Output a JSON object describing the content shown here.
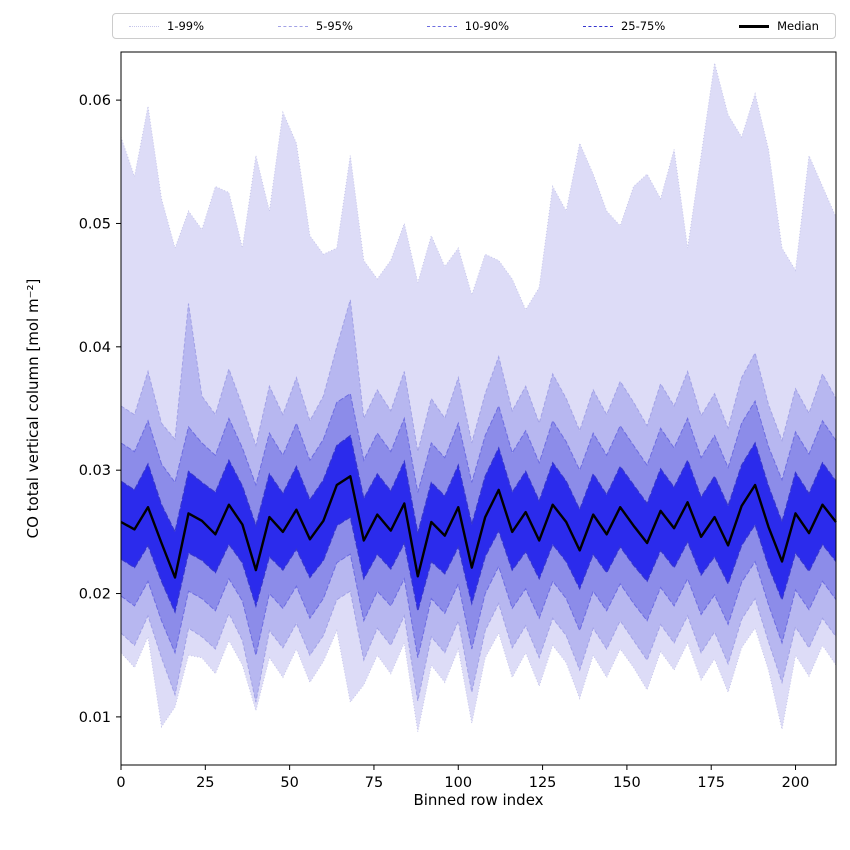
{
  "figure": {
    "xlabel": "Binned row index",
    "ylabel": "CO total vertical column [mol m⁻²]"
  },
  "legend": {
    "position": "top",
    "items": [
      {
        "label": "1-99%",
        "style": "dotted",
        "color": "#c6c6ea",
        "weight": 1
      },
      {
        "label": "5-95%",
        "style": "dashed",
        "color": "#a2a2e6",
        "weight": 1
      },
      {
        "label": "10-90%",
        "style": "dashed",
        "color": "#6d6de0",
        "weight": 1
      },
      {
        "label": "25-75%",
        "style": "dashed",
        "color": "#3535cf",
        "weight": 1
      },
      {
        "label": "Median",
        "style": "solid",
        "color": "#000000",
        "weight": 3
      }
    ]
  },
  "chart_data": {
    "type": "area",
    "subtype": "quantile-fan",
    "title": "",
    "xlabel": "Binned row index",
    "ylabel": "CO total vertical column [mol m⁻²]",
    "xlim": [
      0,
      212
    ],
    "ylim": [
      0.0061,
      0.0639
    ],
    "x_ticks": [
      0,
      25,
      50,
      75,
      100,
      125,
      150,
      175,
      200
    ],
    "y_ticks": [
      0.01,
      0.02,
      0.03,
      0.04,
      0.05,
      0.06
    ],
    "grid": false,
    "legend_position": "top",
    "x": [
      0,
      4,
      8,
      12,
      16,
      20,
      24,
      28,
      32,
      36,
      40,
      44,
      48,
      52,
      56,
      60,
      64,
      68,
      72,
      76,
      80,
      84,
      88,
      92,
      96,
      100,
      104,
      108,
      112,
      116,
      120,
      124,
      128,
      132,
      136,
      140,
      144,
      148,
      152,
      156,
      160,
      164,
      168,
      172,
      176,
      180,
      184,
      188,
      192,
      196,
      200,
      204,
      208,
      212
    ],
    "series": [
      {
        "name": "p1",
        "values": [
          0.0152,
          0.014,
          0.0165,
          0.0092,
          0.0108,
          0.015,
          0.0148,
          0.0135,
          0.0162,
          0.0142,
          0.0105,
          0.0148,
          0.0132,
          0.0155,
          0.0128,
          0.0145,
          0.017,
          0.0112,
          0.0126,
          0.015,
          0.0135,
          0.016,
          0.0088,
          0.0142,
          0.0128,
          0.0155,
          0.0095,
          0.0148,
          0.0168,
          0.0132,
          0.0152,
          0.0125,
          0.0158,
          0.0144,
          0.0115,
          0.015,
          0.0132,
          0.0155,
          0.014,
          0.0122,
          0.0153,
          0.0138,
          0.016,
          0.013,
          0.0147,
          0.012,
          0.0156,
          0.0172,
          0.0138,
          0.009,
          0.015,
          0.0133,
          0.0158,
          0.0142
        ]
      },
      {
        "name": "p5",
        "values": [
          0.0168,
          0.0158,
          0.0182,
          0.0148,
          0.0118,
          0.0172,
          0.0165,
          0.0155,
          0.0184,
          0.0162,
          0.0112,
          0.017,
          0.0156,
          0.0176,
          0.015,
          0.0166,
          0.0195,
          0.0202,
          0.0146,
          0.0172,
          0.0158,
          0.0182,
          0.0113,
          0.0165,
          0.0152,
          0.0178,
          0.012,
          0.017,
          0.0192,
          0.0156,
          0.0174,
          0.0148,
          0.018,
          0.0166,
          0.0138,
          0.0172,
          0.0155,
          0.0178,
          0.0162,
          0.0146,
          0.0175,
          0.016,
          0.0182,
          0.0152,
          0.0169,
          0.0143,
          0.0179,
          0.0196,
          0.0161,
          0.0128,
          0.0173,
          0.0156,
          0.018,
          0.0165
        ]
      },
      {
        "name": "p10",
        "values": [
          0.0198,
          0.019,
          0.021,
          0.0178,
          0.0152,
          0.0202,
          0.0196,
          0.0186,
          0.0212,
          0.0194,
          0.015,
          0.02,
          0.0188,
          0.0206,
          0.018,
          0.0196,
          0.0225,
          0.0232,
          0.0178,
          0.0202,
          0.019,
          0.0212,
          0.0148,
          0.0196,
          0.0184,
          0.0208,
          0.0155,
          0.02,
          0.0222,
          0.0188,
          0.0204,
          0.018,
          0.021,
          0.0196,
          0.017,
          0.0202,
          0.0186,
          0.0208,
          0.0192,
          0.0178,
          0.0205,
          0.019,
          0.0212,
          0.0183,
          0.0199,
          0.0175,
          0.0209,
          0.0226,
          0.0191,
          0.016,
          0.0203,
          0.0187,
          0.021,
          0.0195
        ]
      },
      {
        "name": "p25",
        "values": [
          0.0228,
          0.0221,
          0.0239,
          0.021,
          0.0185,
          0.0233,
          0.0227,
          0.0217,
          0.024,
          0.0225,
          0.019,
          0.023,
          0.0219,
          0.0236,
          0.0213,
          0.0227,
          0.0255,
          0.0262,
          0.0212,
          0.0232,
          0.022,
          0.0241,
          0.0186,
          0.0226,
          0.0216,
          0.0238,
          0.0192,
          0.023,
          0.0251,
          0.0219,
          0.0234,
          0.0212,
          0.024,
          0.0226,
          0.0204,
          0.0232,
          0.0217,
          0.0238,
          0.0223,
          0.021,
          0.0235,
          0.0221,
          0.0242,
          0.0215,
          0.023,
          0.0208,
          0.0239,
          0.0256,
          0.0222,
          0.0195,
          0.0233,
          0.0218,
          0.024,
          0.0226
        ]
      },
      {
        "name": "median",
        "values": [
          0.0258,
          0.0252,
          0.027,
          0.0241,
          0.0213,
          0.0265,
          0.0259,
          0.0248,
          0.0272,
          0.0256,
          0.0219,
          0.0262,
          0.025,
          0.0268,
          0.0244,
          0.0259,
          0.0288,
          0.0295,
          0.0243,
          0.0264,
          0.0251,
          0.0273,
          0.0214,
          0.0258,
          0.0247,
          0.027,
          0.0221,
          0.0262,
          0.0284,
          0.025,
          0.0266,
          0.0243,
          0.0272,
          0.0258,
          0.0235,
          0.0264,
          0.0248,
          0.027,
          0.0255,
          0.0241,
          0.0267,
          0.0253,
          0.0274,
          0.0246,
          0.0262,
          0.0239,
          0.0271,
          0.0288,
          0.0254,
          0.0226,
          0.0265,
          0.0249,
          0.0272,
          0.0258
        ]
      },
      {
        "name": "p75",
        "values": [
          0.0291,
          0.0284,
          0.0305,
          0.0272,
          0.025,
          0.0299,
          0.029,
          0.0282,
          0.0308,
          0.0287,
          0.0255,
          0.0297,
          0.0281,
          0.0303,
          0.0276,
          0.0292,
          0.032,
          0.0328,
          0.0277,
          0.0297,
          0.0283,
          0.0307,
          0.0249,
          0.029,
          0.0279,
          0.0304,
          0.0256,
          0.0295,
          0.0318,
          0.0282,
          0.0299,
          0.0275,
          0.0306,
          0.0291,
          0.0268,
          0.0297,
          0.028,
          0.0303,
          0.0288,
          0.0273,
          0.0301,
          0.0286,
          0.0308,
          0.0278,
          0.0295,
          0.0271,
          0.0304,
          0.0322,
          0.0287,
          0.0258,
          0.0298,
          0.0281,
          0.0306,
          0.0291
        ]
      },
      {
        "name": "p90",
        "values": [
          0.0322,
          0.0315,
          0.034,
          0.0305,
          0.029,
          0.0335,
          0.0322,
          0.0312,
          0.0342,
          0.0318,
          0.0288,
          0.033,
          0.0312,
          0.0338,
          0.0308,
          0.0325,
          0.0355,
          0.0362,
          0.0308,
          0.033,
          0.0315,
          0.0342,
          0.0282,
          0.0322,
          0.031,
          0.0338,
          0.029,
          0.0328,
          0.0352,
          0.0314,
          0.0332,
          0.0306,
          0.034,
          0.0323,
          0.03,
          0.033,
          0.0312,
          0.0336,
          0.032,
          0.0304,
          0.0334,
          0.0318,
          0.0342,
          0.031,
          0.0328,
          0.0302,
          0.0338,
          0.0356,
          0.0319,
          0.0292,
          0.0331,
          0.0313,
          0.034,
          0.0324
        ]
      },
      {
        "name": "p95",
        "values": [
          0.0352,
          0.0345,
          0.038,
          0.0338,
          0.0325,
          0.0435,
          0.036,
          0.0345,
          0.0382,
          0.0352,
          0.032,
          0.0368,
          0.0345,
          0.0375,
          0.034,
          0.036,
          0.04,
          0.0438,
          0.0342,
          0.0365,
          0.0348,
          0.038,
          0.0315,
          0.0358,
          0.0342,
          0.0375,
          0.0322,
          0.0362,
          0.0392,
          0.0348,
          0.0368,
          0.0338,
          0.0378,
          0.0358,
          0.0332,
          0.0365,
          0.0345,
          0.0372,
          0.0355,
          0.0336,
          0.037,
          0.0352,
          0.038,
          0.0344,
          0.0362,
          0.0334,
          0.0375,
          0.0395,
          0.0353,
          0.0324,
          0.0366,
          0.0346,
          0.0378,
          0.0358
        ]
      },
      {
        "name": "p99",
        "values": [
          0.057,
          0.0538,
          0.0595,
          0.052,
          0.048,
          0.051,
          0.0495,
          0.053,
          0.0525,
          0.048,
          0.0555,
          0.051,
          0.059,
          0.0565,
          0.049,
          0.0475,
          0.048,
          0.0555,
          0.047,
          0.0455,
          0.047,
          0.05,
          0.0452,
          0.049,
          0.0465,
          0.048,
          0.0442,
          0.0475,
          0.047,
          0.0455,
          0.043,
          0.0448,
          0.053,
          0.051,
          0.0565,
          0.054,
          0.051,
          0.0498,
          0.053,
          0.054,
          0.052,
          0.056,
          0.048,
          0.0555,
          0.063,
          0.0588,
          0.057,
          0.0605,
          0.056,
          0.048,
          0.0462,
          0.0555,
          0.053,
          0.0505
        ]
      }
    ],
    "bands": [
      {
        "label": "1-99%",
        "lower": "p1",
        "upper": "p99",
        "fill": "#dddcf7",
        "edge": "#c6c6ea",
        "dash": "1,2",
        "edge_width": 1
      },
      {
        "label": "5-95%",
        "lower": "p5",
        "upper": "p95",
        "fill": "#b7b7f0",
        "edge": "#a2a2e6",
        "dash": "4,2",
        "edge_width": 1
      },
      {
        "label": "10-90%",
        "lower": "p10",
        "upper": "p90",
        "fill": "#8c8ce9",
        "edge": "#6d6de0",
        "dash": "5,2",
        "edge_width": 1
      },
      {
        "label": "25-75%",
        "lower": "p25",
        "upper": "p75",
        "fill": "#2b2bec",
        "edge": "#3535cf",
        "dash": "6,2",
        "edge_width": 1.2
      }
    ],
    "median_style": {
      "color": "#000000",
      "width": 2.4
    }
  }
}
